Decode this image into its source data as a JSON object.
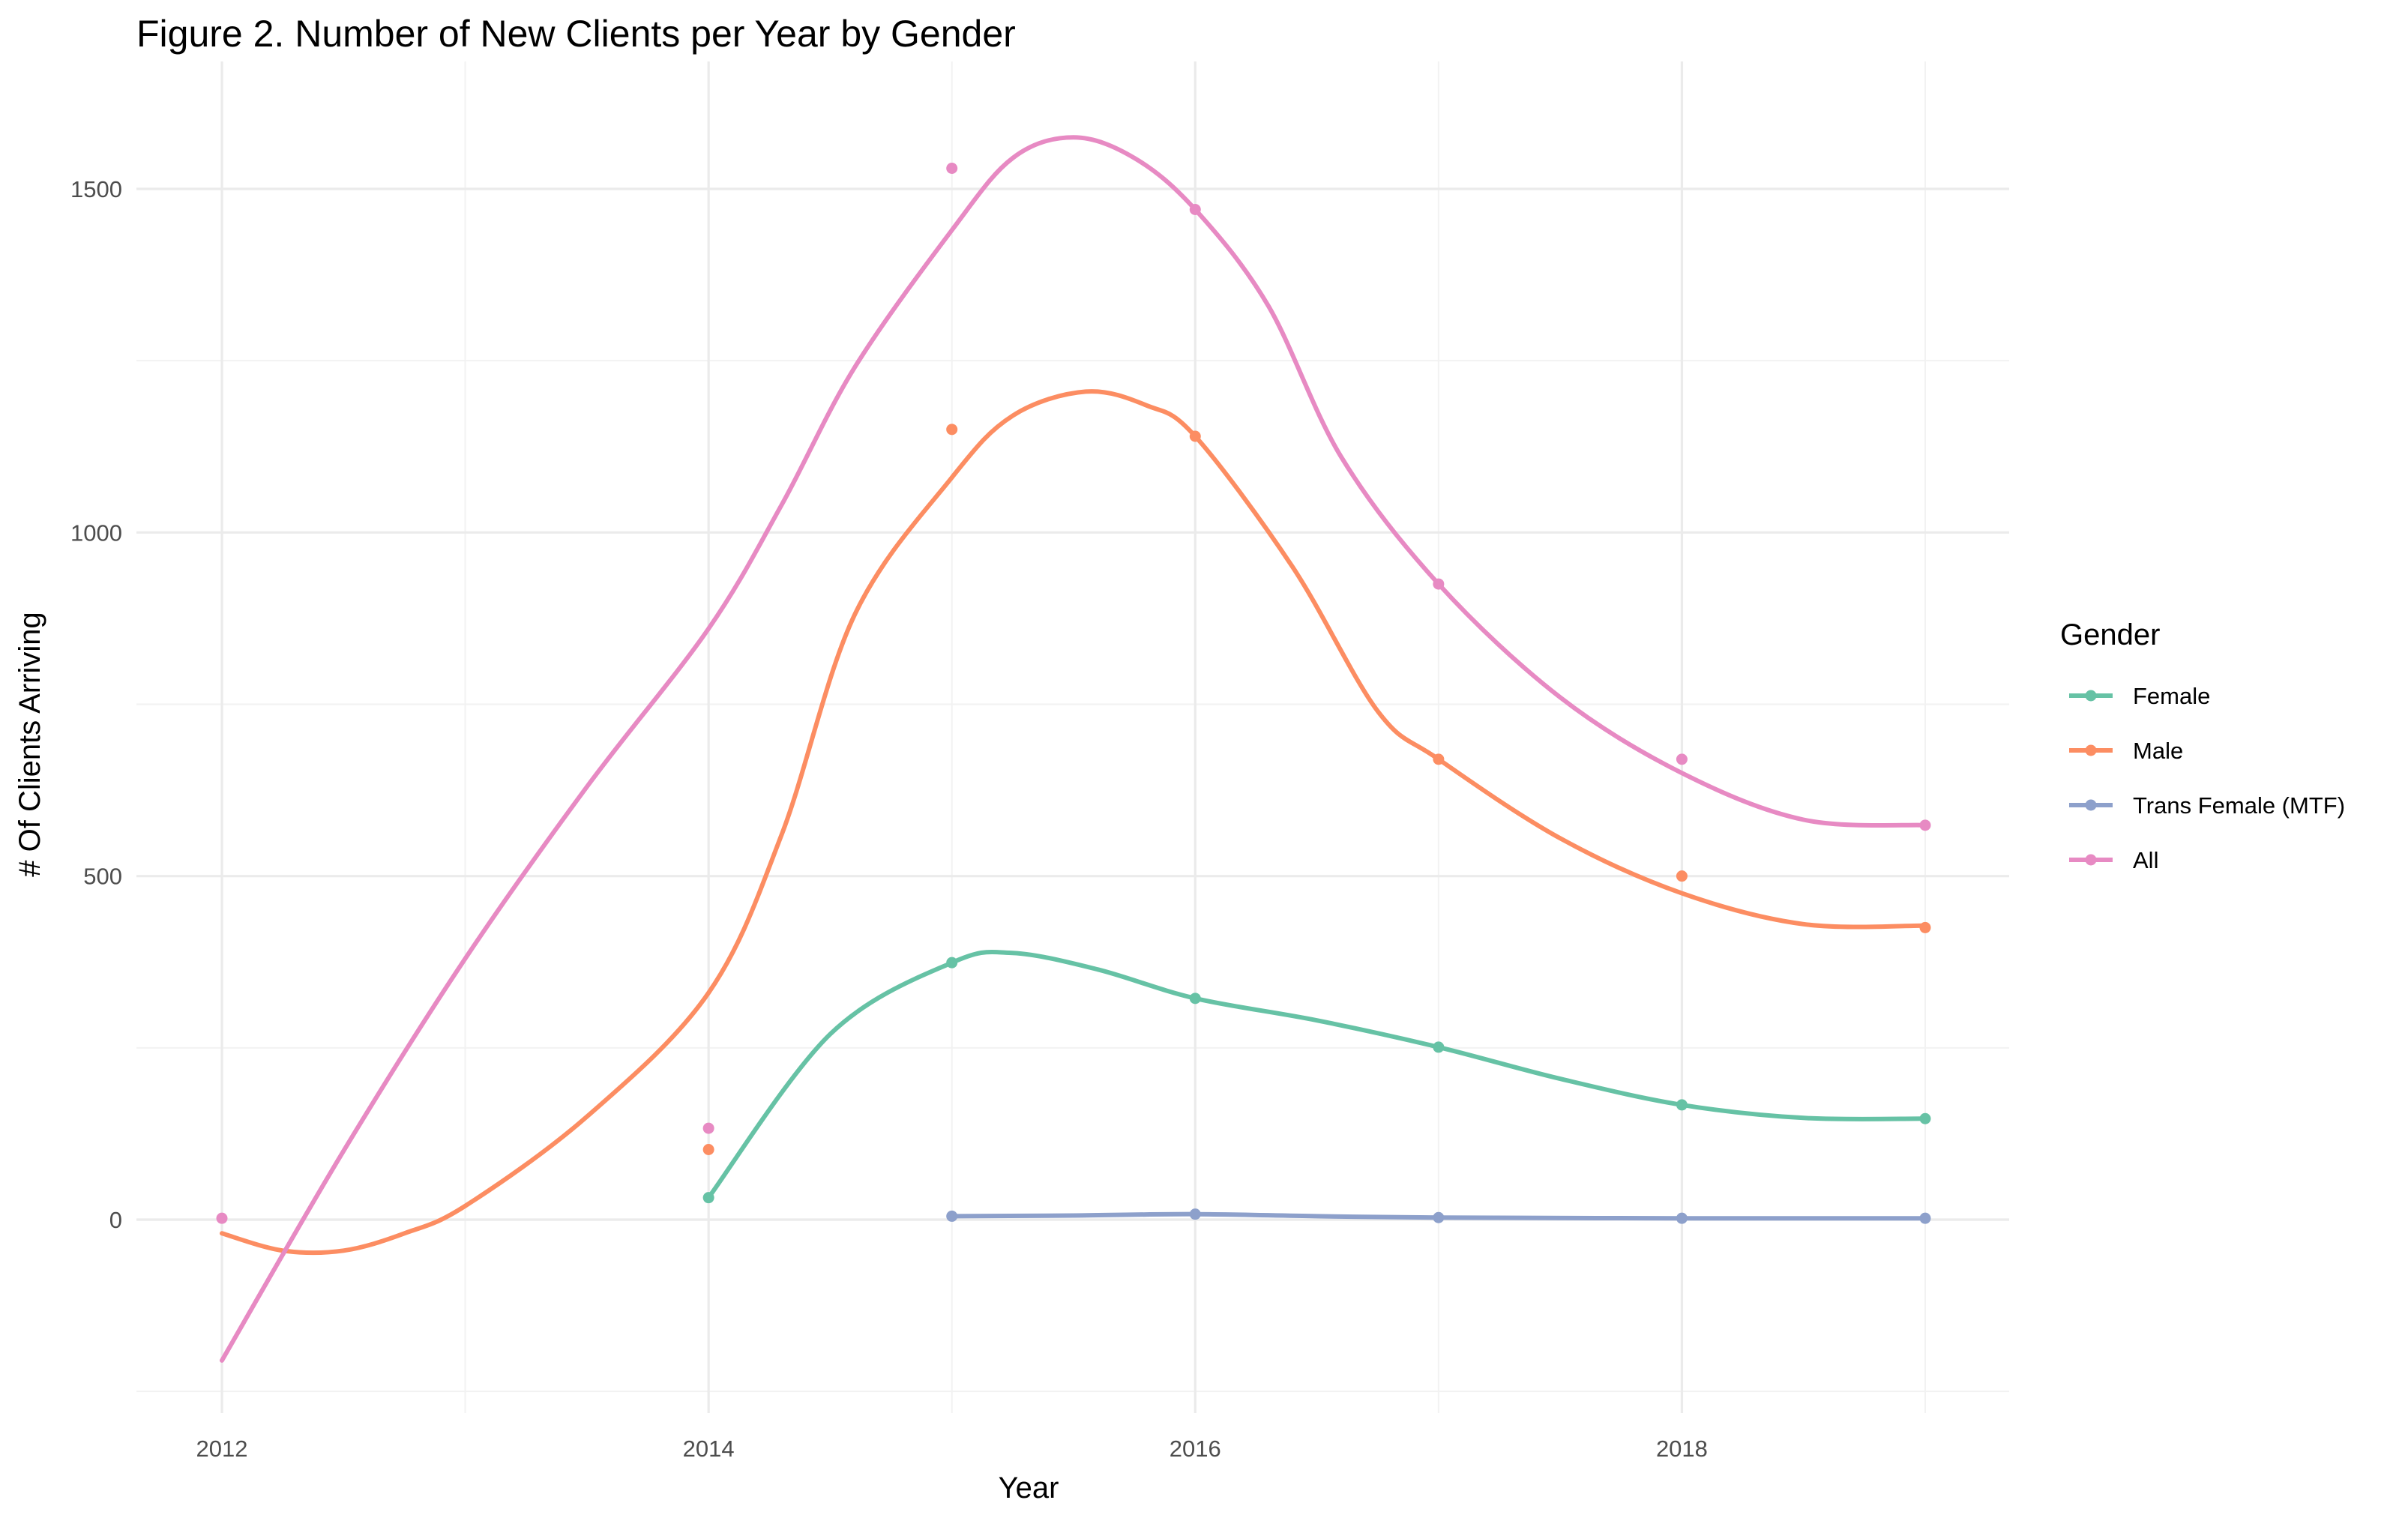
{
  "chart_data": {
    "type": "line",
    "title": "Figure 2. Number of New Clients per Year by Gender",
    "xlabel": "Year",
    "ylabel": "# Of Clients Arriving",
    "xlim": [
      2011.65,
      2019.35
    ],
    "ylim": [
      -250,
      1650
    ],
    "x_ticks": [
      2012,
      2014,
      2016,
      2018
    ],
    "x_tick_labels": [
      "2012",
      "2014",
      "2016",
      "2018"
    ],
    "x_minor": [
      2013,
      2015,
      2017,
      2019
    ],
    "y_ticks": [
      0,
      500,
      1000,
      1500
    ],
    "y_tick_labels": [
      "0",
      "500",
      "1000",
      "1500"
    ],
    "y_minor": [
      -250,
      250,
      750,
      1250
    ],
    "grid": true,
    "smoothed": true,
    "legend": {
      "title": "Gender",
      "position": "right"
    },
    "series": [
      {
        "name": "Female",
        "color": "#66c2a5",
        "points": [
          [
            2014,
            32
          ],
          [
            2015,
            374
          ],
          [
            2016,
            322
          ],
          [
            2017,
            251
          ],
          [
            2018,
            167
          ],
          [
            2019,
            147
          ]
        ],
        "curve": [
          [
            2014,
            32
          ],
          [
            2014.5,
            270
          ],
          [
            2015,
            374
          ],
          [
            2015.25,
            388
          ],
          [
            2015.6,
            364
          ],
          [
            2016,
            322
          ],
          [
            2016.5,
            290
          ],
          [
            2017,
            251
          ],
          [
            2017.5,
            205
          ],
          [
            2018,
            167
          ],
          [
            2018.5,
            148
          ],
          [
            2019,
            147
          ]
        ]
      },
      {
        "name": "Male",
        "color": "#fc8d62",
        "points": [
          [
            2014,
            102
          ],
          [
            2015,
            1150
          ],
          [
            2016,
            1140
          ],
          [
            2017,
            670
          ],
          [
            2018,
            500
          ],
          [
            2019,
            425
          ]
        ],
        "curve": [
          [
            2012,
            -20
          ],
          [
            2012.25,
            -45
          ],
          [
            2012.5,
            -45
          ],
          [
            2012.75,
            -20
          ],
          [
            2013,
            20
          ],
          [
            2013.5,
            150
          ],
          [
            2014,
            330
          ],
          [
            2014.3,
            560
          ],
          [
            2014.6,
            880
          ],
          [
            2015,
            1080
          ],
          [
            2015.25,
            1170
          ],
          [
            2015.55,
            1205
          ],
          [
            2015.8,
            1185
          ],
          [
            2016,
            1140
          ],
          [
            2016.4,
            950
          ],
          [
            2016.75,
            740
          ],
          [
            2017,
            670
          ],
          [
            2017.5,
            555
          ],
          [
            2018,
            475
          ],
          [
            2018.5,
            430
          ],
          [
            2019,
            428
          ]
        ]
      },
      {
        "name": "Trans Female (MTF)",
        "color": "#8da0cb",
        "points": [
          [
            2015,
            5
          ],
          [
            2016,
            8
          ],
          [
            2017,
            3
          ],
          [
            2018,
            2
          ],
          [
            2019,
            2
          ]
        ],
        "curve": [
          [
            2015,
            5
          ],
          [
            2015.5,
            6
          ],
          [
            2016,
            8
          ],
          [
            2016.5,
            5
          ],
          [
            2017,
            3
          ],
          [
            2018,
            2
          ],
          [
            2019,
            2
          ]
        ]
      },
      {
        "name": "All",
        "color": "#e78ac3",
        "points": [
          [
            2012,
            2
          ],
          [
            2014,
            133
          ],
          [
            2015,
            1530
          ],
          [
            2016,
            1470
          ],
          [
            2017,
            925
          ],
          [
            2018,
            670
          ],
          [
            2019,
            574
          ]
        ],
        "curve": [
          [
            2012,
            -205
          ],
          [
            2012.5,
            100
          ],
          [
            2013,
            380
          ],
          [
            2013.5,
            630
          ],
          [
            2014,
            860
          ],
          [
            2014.3,
            1040
          ],
          [
            2014.6,
            1240
          ],
          [
            2015,
            1440
          ],
          [
            2015.25,
            1545
          ],
          [
            2015.5,
            1575
          ],
          [
            2015.75,
            1545
          ],
          [
            2016,
            1470
          ],
          [
            2016.3,
            1330
          ],
          [
            2016.6,
            1110
          ],
          [
            2017,
            925
          ],
          [
            2017.5,
            760
          ],
          [
            2018,
            650
          ],
          [
            2018.5,
            582
          ],
          [
            2019,
            574
          ]
        ]
      }
    ]
  }
}
